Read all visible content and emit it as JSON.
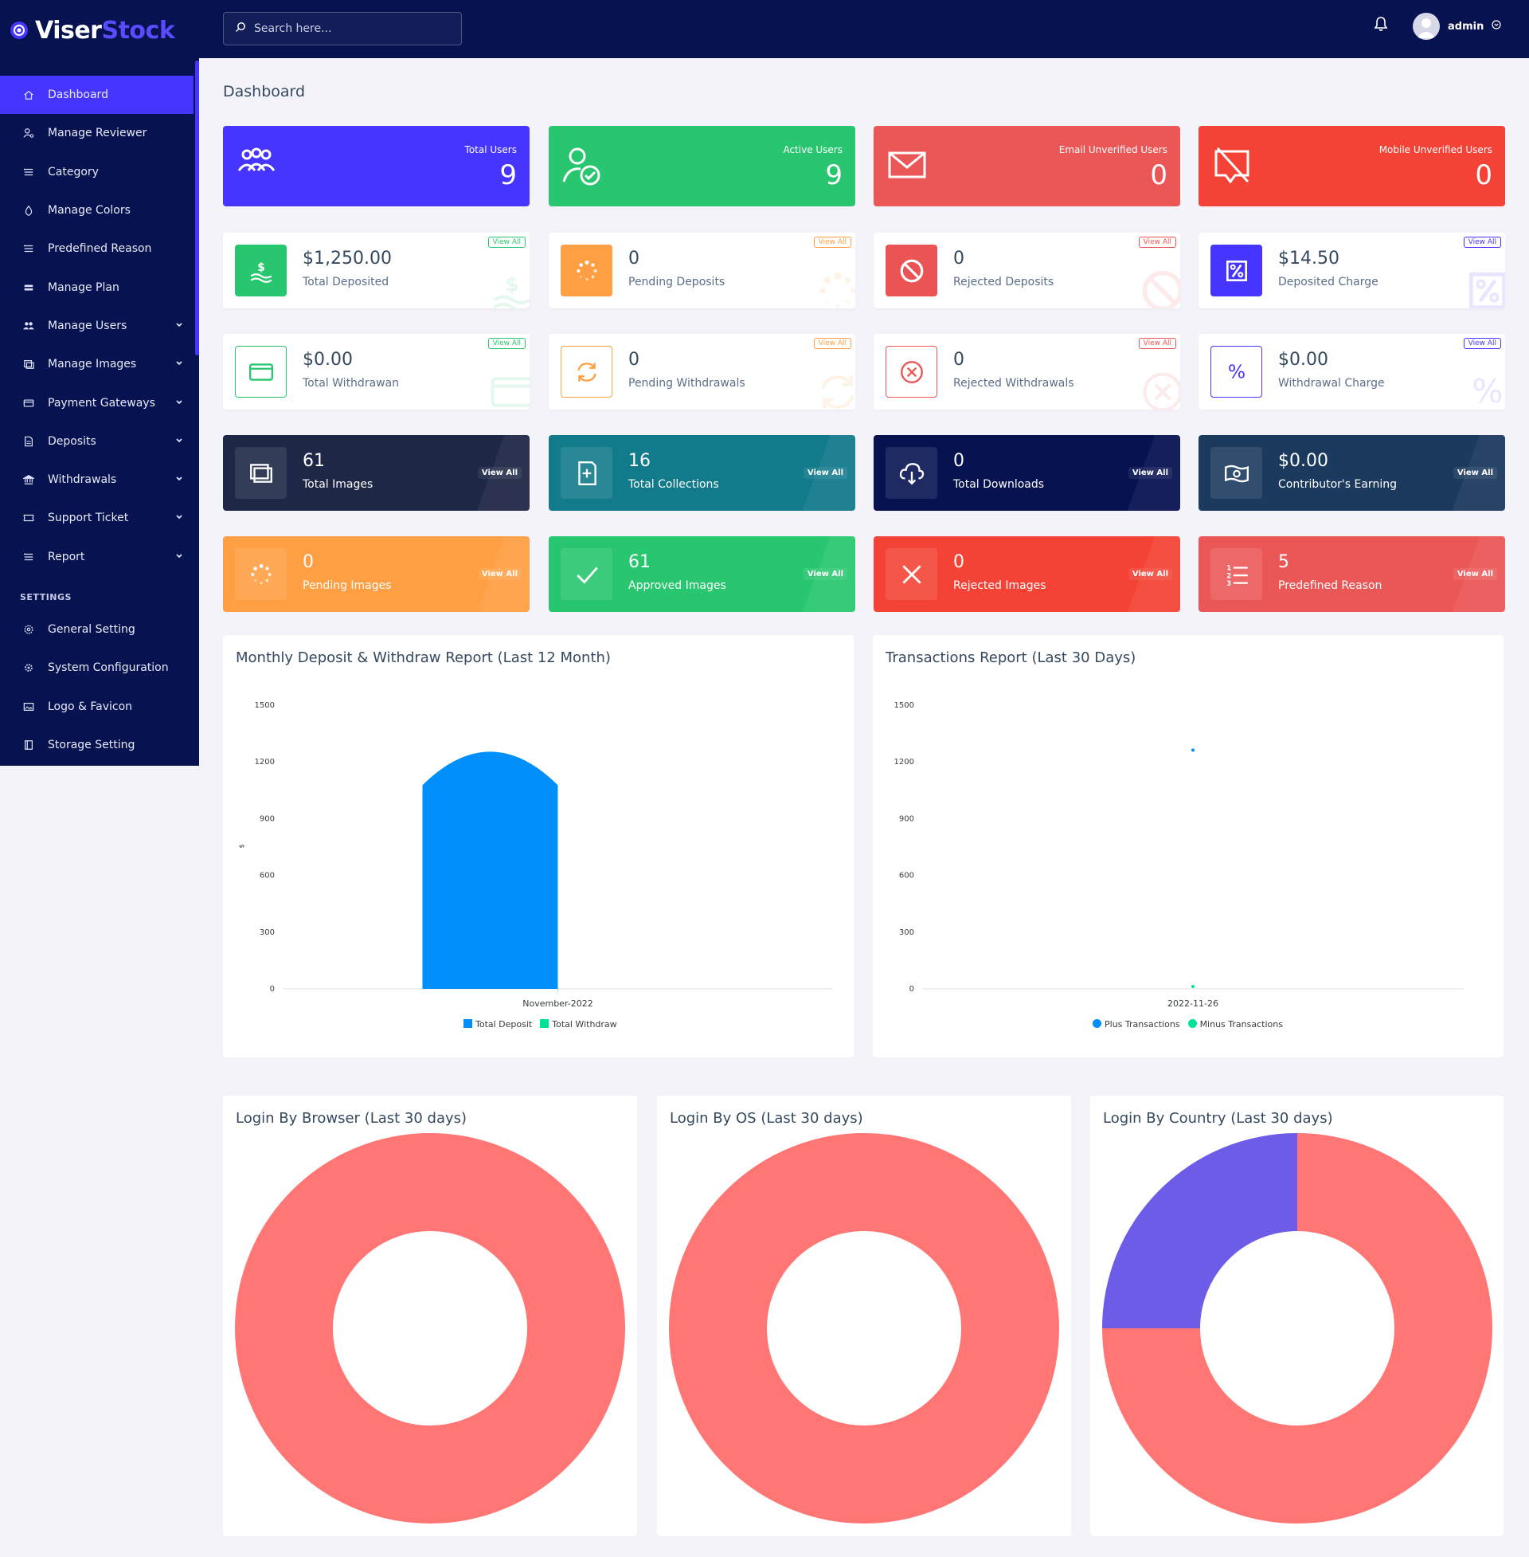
{
  "brand": {
    "part1": "Viser",
    "part2": "Stock"
  },
  "search": {
    "placeholder": "Search here..."
  },
  "user": {
    "name": "admin"
  },
  "page_title": "Dashboard",
  "sidebar": {
    "items": [
      {
        "label": "Dashboard",
        "icon": "home-icon",
        "active": true
      },
      {
        "label": "Manage Reviewer",
        "icon": "user-cog-icon"
      },
      {
        "label": "Category",
        "icon": "list-icon"
      },
      {
        "label": "Manage Colors",
        "icon": "droplet-icon"
      },
      {
        "label": "Predefined Reason",
        "icon": "list-icon"
      },
      {
        "label": "Manage Plan",
        "icon": "layers-icon"
      },
      {
        "label": "Manage Users",
        "icon": "users-icon",
        "caret": true
      },
      {
        "label": "Manage Images",
        "icon": "images-icon",
        "caret": true
      },
      {
        "label": "Payment Gateways",
        "icon": "credit-card-icon",
        "caret": true
      },
      {
        "label": "Deposits",
        "icon": "file-invoice-icon",
        "caret": true
      },
      {
        "label": "Withdrawals",
        "icon": "bank-icon",
        "caret": true
      },
      {
        "label": "Support Ticket",
        "icon": "ticket-icon",
        "caret": true
      },
      {
        "label": "Report",
        "icon": "list-icon",
        "caret": true
      }
    ],
    "settings_label": "SETTINGS",
    "settings": [
      {
        "label": "General Setting",
        "icon": "cog-icon"
      },
      {
        "label": "System Configuration",
        "icon": "gears-icon"
      },
      {
        "label": "Logo & Favicon",
        "icon": "image-icon"
      },
      {
        "label": "Storage Setting",
        "icon": "storage-icon"
      }
    ]
  },
  "top_widgets": [
    {
      "label": "Total Users",
      "value": "9",
      "color": "#4634ff",
      "icon": "users-group-icon"
    },
    {
      "label": "Active Users",
      "value": "9",
      "color": "#28c76f",
      "icon": "user-check-icon"
    },
    {
      "label": "Email Unverified Users",
      "value": "0",
      "color": "#eb5757",
      "icon": "envelope-icon"
    },
    {
      "label": "Mobile Unverified Users",
      "value": "0",
      "color": "#f44336",
      "icon": "mobile-off-icon"
    }
  ],
  "deposit_widgets": [
    {
      "value": "$1,250.00",
      "label": "Total Deposited",
      "color": "#28c76f",
      "view": "View All",
      "icon": "hand-dollar-icon",
      "style": "filled"
    },
    {
      "value": "0",
      "label": "Pending Deposits",
      "color": "#ff9f43",
      "view": "View All",
      "icon": "spinner-icon",
      "style": "filled"
    },
    {
      "value": "0",
      "label": "Rejected Deposits",
      "color": "#ea5455",
      "view": "View All",
      "icon": "ban-icon",
      "style": "filled"
    },
    {
      "value": "$14.50",
      "label": "Deposited Charge",
      "color": "#4634ff",
      "view": "View All",
      "icon": "percent-box-icon",
      "style": "filled"
    }
  ],
  "withdraw_widgets": [
    {
      "value": "$0.00",
      "label": "Total Withdrawan",
      "color": "#28c76f",
      "view": "View All",
      "icon": "card-icon",
      "style": "outline"
    },
    {
      "value": "0",
      "label": "Pending Withdrawals",
      "color": "#ff9f43",
      "view": "View All",
      "icon": "sync-icon",
      "style": "outline"
    },
    {
      "value": "0",
      "label": "Rejected Withdrawals",
      "color": "#ea5455",
      "view": "View All",
      "icon": "times-circle-icon",
      "style": "outline"
    },
    {
      "value": "$0.00",
      "label": "Withdrawal Charge",
      "color": "#4634ff",
      "view": "View All",
      "icon": "percent-icon",
      "style": "outline"
    }
  ],
  "dark_widgets": [
    {
      "value": "61",
      "label": "Total Images",
      "view": "View All",
      "color": "#1e2746",
      "icon": "images-icon"
    },
    {
      "value": "16",
      "label": "Total Collections",
      "view": "View All",
      "color": "#117a8b",
      "icon": "collection-icon"
    },
    {
      "value": "0",
      "label": "Total Downloads",
      "view": "View All",
      "color": "#071251",
      "icon": "cloud-download-icon"
    },
    {
      "value": "$0.00",
      "label": "Contributor's Earning",
      "view": "View All",
      "color": "#1b3a5e",
      "icon": "money-icon"
    }
  ],
  "status_widgets": [
    {
      "value": "0",
      "label": "Pending Images",
      "view": "View All",
      "color": "#ff9f43",
      "icon": "spinner-icon"
    },
    {
      "value": "61",
      "label": "Approved Images",
      "view": "View All",
      "color": "#28c76f",
      "icon": "check-icon"
    },
    {
      "value": "0",
      "label": "Rejected Images",
      "view": "View All",
      "color": "#f44336",
      "icon": "times-icon"
    },
    {
      "value": "5",
      "label": "Predefined Reason",
      "view": "View All",
      "color": "#eb5757",
      "icon": "ordered-list-icon"
    }
  ],
  "charts": {
    "monthly": {
      "title": "Monthly Deposit & Withdraw Report (Last 12 Month)"
    },
    "transactions": {
      "title": "Transactions Report (Last 30 Days)"
    },
    "browser": {
      "title": "Login By Browser (Last 30 days)"
    },
    "os": {
      "title": "Login By OS (Last 30 days)"
    },
    "country": {
      "title": "Login By Country (Last 30 days)"
    }
  },
  "chart_data": [
    {
      "type": "bar",
      "title": "Monthly Deposit & Withdraw Report (Last 12 Month)",
      "categories": [
        "November-2022"
      ],
      "series": [
        {
          "name": "Total Deposit",
          "values": [
            1250
          ],
          "color": "#008ffb"
        },
        {
          "name": "Total Withdraw",
          "values": [
            0
          ],
          "color": "#00e396"
        }
      ],
      "ylabel": "$",
      "ylim": [
        0,
        1500
      ],
      "yticks": [
        "0",
        "300",
        "600",
        "900",
        "1200",
        "1500"
      ],
      "legend": "bottom"
    },
    {
      "type": "scatter",
      "title": "Transactions Report (Last 30 Days)",
      "x": [
        "2022-11-26"
      ],
      "series": [
        {
          "name": "Plus Transactions",
          "values": [
            1250
          ],
          "color": "#008ffb"
        },
        {
          "name": "Minus Transactions",
          "values": [
            0
          ],
          "color": "#00e396"
        }
      ],
      "ylim": [
        0,
        1500
      ],
      "yticks": [
        "0",
        "300",
        "600",
        "900",
        "1200",
        "1500"
      ],
      "legend": "bottom"
    },
    {
      "type": "pie",
      "title": "Login By Browser (Last 30 days)",
      "slices": [
        {
          "value": 100,
          "color": "#ff7675"
        }
      ]
    },
    {
      "type": "pie",
      "title": "Login By OS (Last 30 days)",
      "slices": [
        {
          "value": 100,
          "color": "#ff7675"
        }
      ]
    },
    {
      "type": "pie",
      "title": "Login By Country (Last 30 days)",
      "slices": [
        {
          "value": 75,
          "color": "#ff7675"
        },
        {
          "value": 25,
          "color": "#6c5ce7"
        }
      ]
    }
  ]
}
